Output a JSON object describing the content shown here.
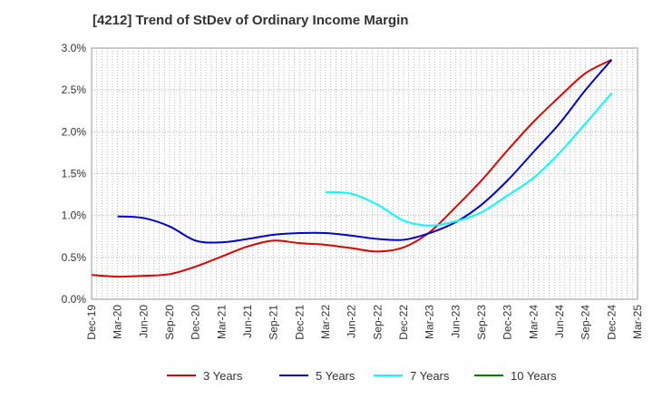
{
  "chart_data": {
    "type": "line",
    "title": "[4212]  Trend of StDev of Ordinary Income Margin",
    "xlabel": "",
    "ylabel": "",
    "x": [
      "Dec-19",
      "Mar-20",
      "Jun-20",
      "Sep-20",
      "Dec-20",
      "Mar-21",
      "Jun-21",
      "Sep-21",
      "Dec-21",
      "Mar-22",
      "Jun-22",
      "Sep-22",
      "Dec-22",
      "Mar-23",
      "Jun-23",
      "Sep-23",
      "Dec-23",
      "Mar-24",
      "Jun-24",
      "Sep-24",
      "Dec-24",
      "Mar-25"
    ],
    "ylim": [
      0,
      3.0
    ],
    "yticks": [
      0,
      0.5,
      1.0,
      1.5,
      2.0,
      2.5,
      3.0
    ],
    "ytick_labels": [
      "0.0%",
      "0.5%",
      "1.0%",
      "1.5%",
      "2.0%",
      "2.5%",
      "3.0%"
    ],
    "grid": true,
    "legend_position": "bottom",
    "series": [
      {
        "name": "3 Years",
        "color": "#dd0000",
        "values": [
          0.29,
          0.27,
          0.28,
          0.3,
          0.39,
          0.51,
          0.63,
          0.7,
          0.67,
          0.65,
          0.61,
          0.57,
          0.62,
          0.8,
          1.1,
          1.42,
          1.78,
          2.12,
          2.42,
          2.7,
          2.86,
          null
        ]
      },
      {
        "name": "5 Years",
        "color": "#0000cc",
        "values": [
          null,
          0.99,
          0.97,
          0.87,
          0.7,
          0.68,
          0.72,
          0.77,
          0.79,
          0.79,
          0.76,
          0.72,
          0.71,
          0.79,
          0.92,
          1.13,
          1.42,
          1.76,
          2.1,
          2.5,
          2.86,
          null
        ]
      },
      {
        "name": "7 Years",
        "color": "#00ffff",
        "values": [
          null,
          null,
          null,
          null,
          null,
          null,
          null,
          null,
          null,
          1.28,
          1.26,
          1.13,
          0.94,
          0.88,
          0.93,
          1.04,
          1.24,
          1.45,
          1.75,
          2.1,
          2.46,
          null
        ]
      },
      {
        "name": "10 Years",
        "color": "#008000",
        "values": [
          null,
          null,
          null,
          null,
          null,
          null,
          null,
          null,
          null,
          null,
          null,
          null,
          null,
          null,
          null,
          null,
          null,
          null,
          null,
          null,
          null,
          null
        ]
      }
    ]
  }
}
